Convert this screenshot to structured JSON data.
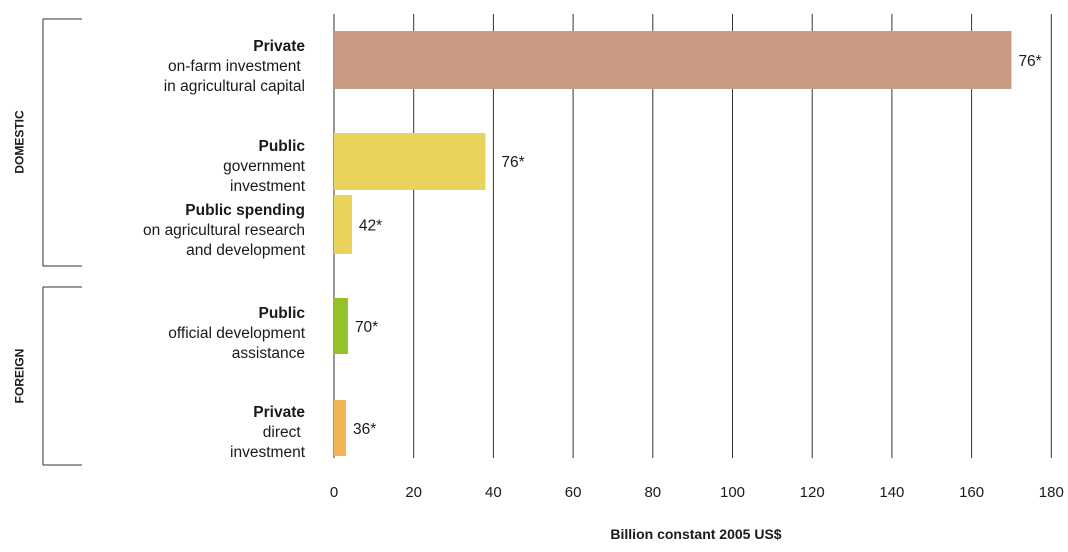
{
  "chart_data": {
    "type": "bar",
    "orientation": "horizontal",
    "xlabel": "Billion constant 2005 US$",
    "xlim": [
      0,
      180
    ],
    "x_ticks": [
      "0",
      "20",
      "40",
      "60",
      "80",
      "100",
      "120",
      "140",
      "160",
      "180"
    ],
    "grid": true,
    "groups": [
      {
        "label": "DOMESTIC"
      },
      {
        "label": "FOREIGN"
      }
    ],
    "categories": [
      {
        "head": "Private",
        "rest": "on-farm investment \nin agricultural capital",
        "group": "DOMESTIC"
      },
      {
        "head": "Public",
        "rest": "government\ninvestment",
        "group": "DOMESTIC"
      },
      {
        "head": "Public spending",
        "rest": "on agricultural research\nand development",
        "group": "DOMESTIC"
      },
      {
        "head": "Public",
        "rest": "official development\nassistance",
        "group": "FOREIGN"
      },
      {
        "head": "Private",
        "rest": "direct \ninvestment",
        "group": "FOREIGN"
      }
    ],
    "values": [
      170,
      38,
      4.5,
      3.5,
      3
    ],
    "data_labels": [
      "76*",
      "76*",
      "42*",
      "70*",
      "36*"
    ],
    "colors": [
      "#c99a84",
      "#ead35a",
      "#ead35a",
      "#95c12a",
      "#f3b554"
    ]
  }
}
